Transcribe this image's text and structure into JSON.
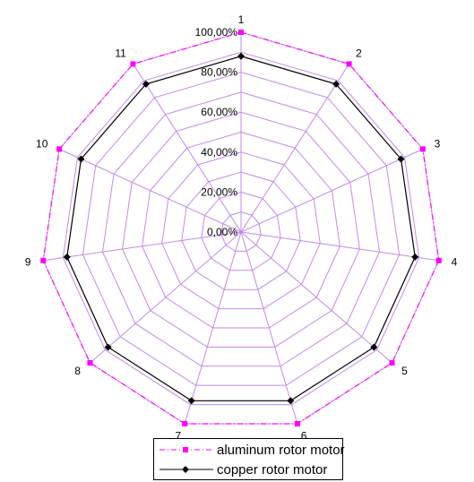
{
  "chart_data": {
    "type": "radar",
    "categories": [
      "1",
      "2",
      "3",
      "4",
      "5",
      "6",
      "7",
      "8",
      "9",
      "10",
      "11"
    ],
    "rmax": 100,
    "ticks": [
      "0,00%",
      "20,00%",
      "40,00%",
      "60,00%",
      "80,00%",
      "100,00%"
    ],
    "tick_values": [
      0,
      20,
      40,
      60,
      80,
      100
    ],
    "grid": true,
    "legend_position": "bottom",
    "series": [
      {
        "name": "aluminum rotor motor",
        "values": [
          100,
          100,
          100,
          100,
          100,
          100,
          100,
          100,
          100,
          100,
          100
        ],
        "color": "#FF00FF",
        "line_style": "dash-dot",
        "marker": "square"
      },
      {
        "name": "copper rotor motor",
        "values": [
          88,
          88,
          88,
          88,
          88,
          88,
          88,
          88,
          88,
          88,
          88
        ],
        "color": "#000000",
        "line_style": "solid",
        "marker": "diamond"
      }
    ],
    "grid_color": "#C08BE8"
  }
}
